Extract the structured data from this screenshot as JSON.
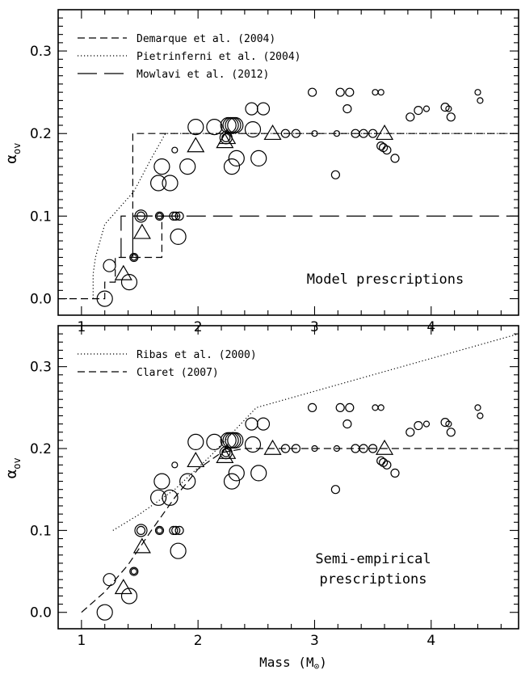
{
  "chart_data": [
    {
      "type": "scatter",
      "annotation": "Model prescriptions",
      "xlim": [
        0.8,
        4.75
      ],
      "ylim": [
        -0.02,
        0.35
      ],
      "xticks": [
        "1",
        "2",
        "3",
        "4"
      ],
      "yticks": [
        "0.0",
        "0.1",
        "0.2",
        "0.3"
      ],
      "ylabel": "α",
      "ylabel_sub": "ov",
      "xlabel": "",
      "legend_position": "top-left",
      "series": [
        {
          "name": "Demarque et al. (2004)",
          "style": "dashed",
          "x": [
            0.8,
            1.2,
            1.2,
            1.29,
            1.29,
            1.44,
            1.44,
            1.69,
            1.69,
            1.44,
            1.44,
            4.75
          ],
          "y": [
            0.0,
            0.0,
            0.02,
            0.02,
            0.05,
            0.05,
            0.1,
            0.1,
            0.05,
            0.05,
            0.2,
            0.2
          ]
        },
        {
          "name": "Pietrinferni et al. (2004)",
          "style": "dotted",
          "x": [
            1.1,
            1.1,
            1.12,
            1.2,
            1.45,
            1.6,
            1.72,
            4.75
          ],
          "y": [
            0.0,
            0.03,
            0.05,
            0.09,
            0.13,
            0.17,
            0.2,
            0.2
          ]
        },
        {
          "name": "Mowlavi et al. (2012)",
          "style": "long-dashed",
          "x": [
            1.34,
            1.34,
            4.75
          ],
          "y": [
            0.05,
            0.1,
            0.1
          ]
        }
      ]
    },
    {
      "type": "scatter",
      "annotation_lines": [
        "Semi-empirical",
        "prescriptions"
      ],
      "xlim": [
        0.8,
        4.75
      ],
      "ylim": [
        -0.02,
        0.35
      ],
      "xticks": [
        "1",
        "2",
        "3",
        "4"
      ],
      "yticks": [
        "0.0",
        "0.1",
        "0.2",
        "0.3"
      ],
      "ylabel": "α",
      "ylabel_sub": "ov",
      "xlabel": "Mass (M",
      "xlabel_unit": "⊙",
      "xlabel_close": ")",
      "legend_position": "top-left",
      "series": [
        {
          "name": "Ribas et al. (2000)",
          "style": "dotted",
          "x": [
            1.27,
            1.5,
            1.8,
            2.1,
            2.5,
            4.75
          ],
          "y": [
            0.1,
            0.12,
            0.15,
            0.19,
            0.25,
            0.34
          ]
        },
        {
          "name": "Claret (2007)",
          "style": "dashed",
          "x": [
            1.0,
            1.2,
            1.4,
            1.6,
            1.8,
            2.0,
            2.2,
            2.4,
            4.75
          ],
          "y": [
            0.0,
            0.025,
            0.058,
            0.1,
            0.14,
            0.175,
            0.195,
            0.2,
            0.2
          ]
        }
      ]
    }
  ],
  "observations": {
    "circles": [
      {
        "m": 1.2,
        "a": 0.0,
        "s": "L"
      },
      {
        "m": 1.24,
        "a": 0.04,
        "s": "M"
      },
      {
        "m": 1.41,
        "a": 0.02,
        "s": "L"
      },
      {
        "m": 1.45,
        "a": 0.05,
        "s": "S"
      },
      {
        "m": 1.45,
        "a": 0.05,
        "s": "XS"
      },
      {
        "m": 1.51,
        "a": 0.1,
        "s": "M"
      },
      {
        "m": 1.51,
        "a": 0.1,
        "s": "S"
      },
      {
        "m": 1.67,
        "a": 0.1,
        "s": "S"
      },
      {
        "m": 1.67,
        "a": 0.1,
        "s": "XS"
      },
      {
        "m": 1.66,
        "a": 0.14,
        "s": "L"
      },
      {
        "m": 1.69,
        "a": 0.16,
        "s": "L"
      },
      {
        "m": 1.76,
        "a": 0.14,
        "s": "L"
      },
      {
        "m": 1.79,
        "a": 0.1,
        "s": "S"
      },
      {
        "m": 1.81,
        "a": 0.1,
        "s": "S"
      },
      {
        "m": 1.83,
        "a": 0.075,
        "s": "L"
      },
      {
        "m": 1.84,
        "a": 0.1,
        "s": "S"
      },
      {
        "m": 1.8,
        "a": 0.18,
        "s": "XS"
      },
      {
        "m": 1.91,
        "a": 0.16,
        "s": "L"
      },
      {
        "m": 1.98,
        "a": 0.208,
        "s": "L"
      },
      {
        "m": 2.14,
        "a": 0.208,
        "s": "L"
      },
      {
        "m": 2.24,
        "a": 0.195,
        "s": "M"
      },
      {
        "m": 2.24,
        "a": 0.195,
        "s": "S"
      },
      {
        "m": 2.26,
        "a": 0.21,
        "s": "L"
      },
      {
        "m": 2.28,
        "a": 0.21,
        "s": "L"
      },
      {
        "m": 2.3,
        "a": 0.21,
        "s": "L"
      },
      {
        "m": 2.32,
        "a": 0.21,
        "s": "L"
      },
      {
        "m": 2.29,
        "a": 0.16,
        "s": "L"
      },
      {
        "m": 2.33,
        "a": 0.17,
        "s": "L"
      },
      {
        "m": 2.46,
        "a": 0.23,
        "s": "M"
      },
      {
        "m": 2.47,
        "a": 0.205,
        "s": "L"
      },
      {
        "m": 2.52,
        "a": 0.17,
        "s": "L"
      },
      {
        "m": 2.56,
        "a": 0.23,
        "s": "M"
      },
      {
        "m": 2.75,
        "a": 0.2,
        "s": "S"
      },
      {
        "m": 2.84,
        "a": 0.2,
        "s": "S"
      },
      {
        "m": 2.98,
        "a": 0.25,
        "s": "S"
      },
      {
        "m": 3.0,
        "a": 0.2,
        "s": "XS"
      },
      {
        "m": 3.18,
        "a": 0.15,
        "s": "S"
      },
      {
        "m": 3.19,
        "a": 0.2,
        "s": "XS"
      },
      {
        "m": 3.22,
        "a": 0.25,
        "s": "S"
      },
      {
        "m": 3.28,
        "a": 0.23,
        "s": "S"
      },
      {
        "m": 3.3,
        "a": 0.25,
        "s": "S"
      },
      {
        "m": 3.35,
        "a": 0.2,
        "s": "S"
      },
      {
        "m": 3.42,
        "a": 0.2,
        "s": "S"
      },
      {
        "m": 3.5,
        "a": 0.2,
        "s": "S"
      },
      {
        "m": 3.52,
        "a": 0.25,
        "s": "XS"
      },
      {
        "m": 3.57,
        "a": 0.25,
        "s": "XS"
      },
      {
        "m": 3.57,
        "a": 0.185,
        "s": "S"
      },
      {
        "m": 3.59,
        "a": 0.183,
        "s": "S"
      },
      {
        "m": 3.62,
        "a": 0.18,
        "s": "S"
      },
      {
        "m": 3.69,
        "a": 0.17,
        "s": "S"
      },
      {
        "m": 3.82,
        "a": 0.22,
        "s": "S"
      },
      {
        "m": 3.89,
        "a": 0.228,
        "s": "S"
      },
      {
        "m": 3.96,
        "a": 0.23,
        "s": "XS"
      },
      {
        "m": 4.12,
        "a": 0.232,
        "s": "S"
      },
      {
        "m": 4.15,
        "a": 0.23,
        "s": "XS"
      },
      {
        "m": 4.17,
        "a": 0.22,
        "s": "S"
      },
      {
        "m": 4.4,
        "a": 0.25,
        "s": "XS"
      },
      {
        "m": 4.42,
        "a": 0.24,
        "s": "XS"
      }
    ],
    "triangles": [
      {
        "m": 1.36,
        "a": 0.03
      },
      {
        "m": 1.52,
        "a": 0.08
      },
      {
        "m": 1.98,
        "a": 0.185
      },
      {
        "m": 2.23,
        "a": 0.19
      },
      {
        "m": 2.25,
        "a": 0.195
      },
      {
        "m": 2.64,
        "a": 0.2
      },
      {
        "m": 3.6,
        "a": 0.2
      }
    ]
  }
}
